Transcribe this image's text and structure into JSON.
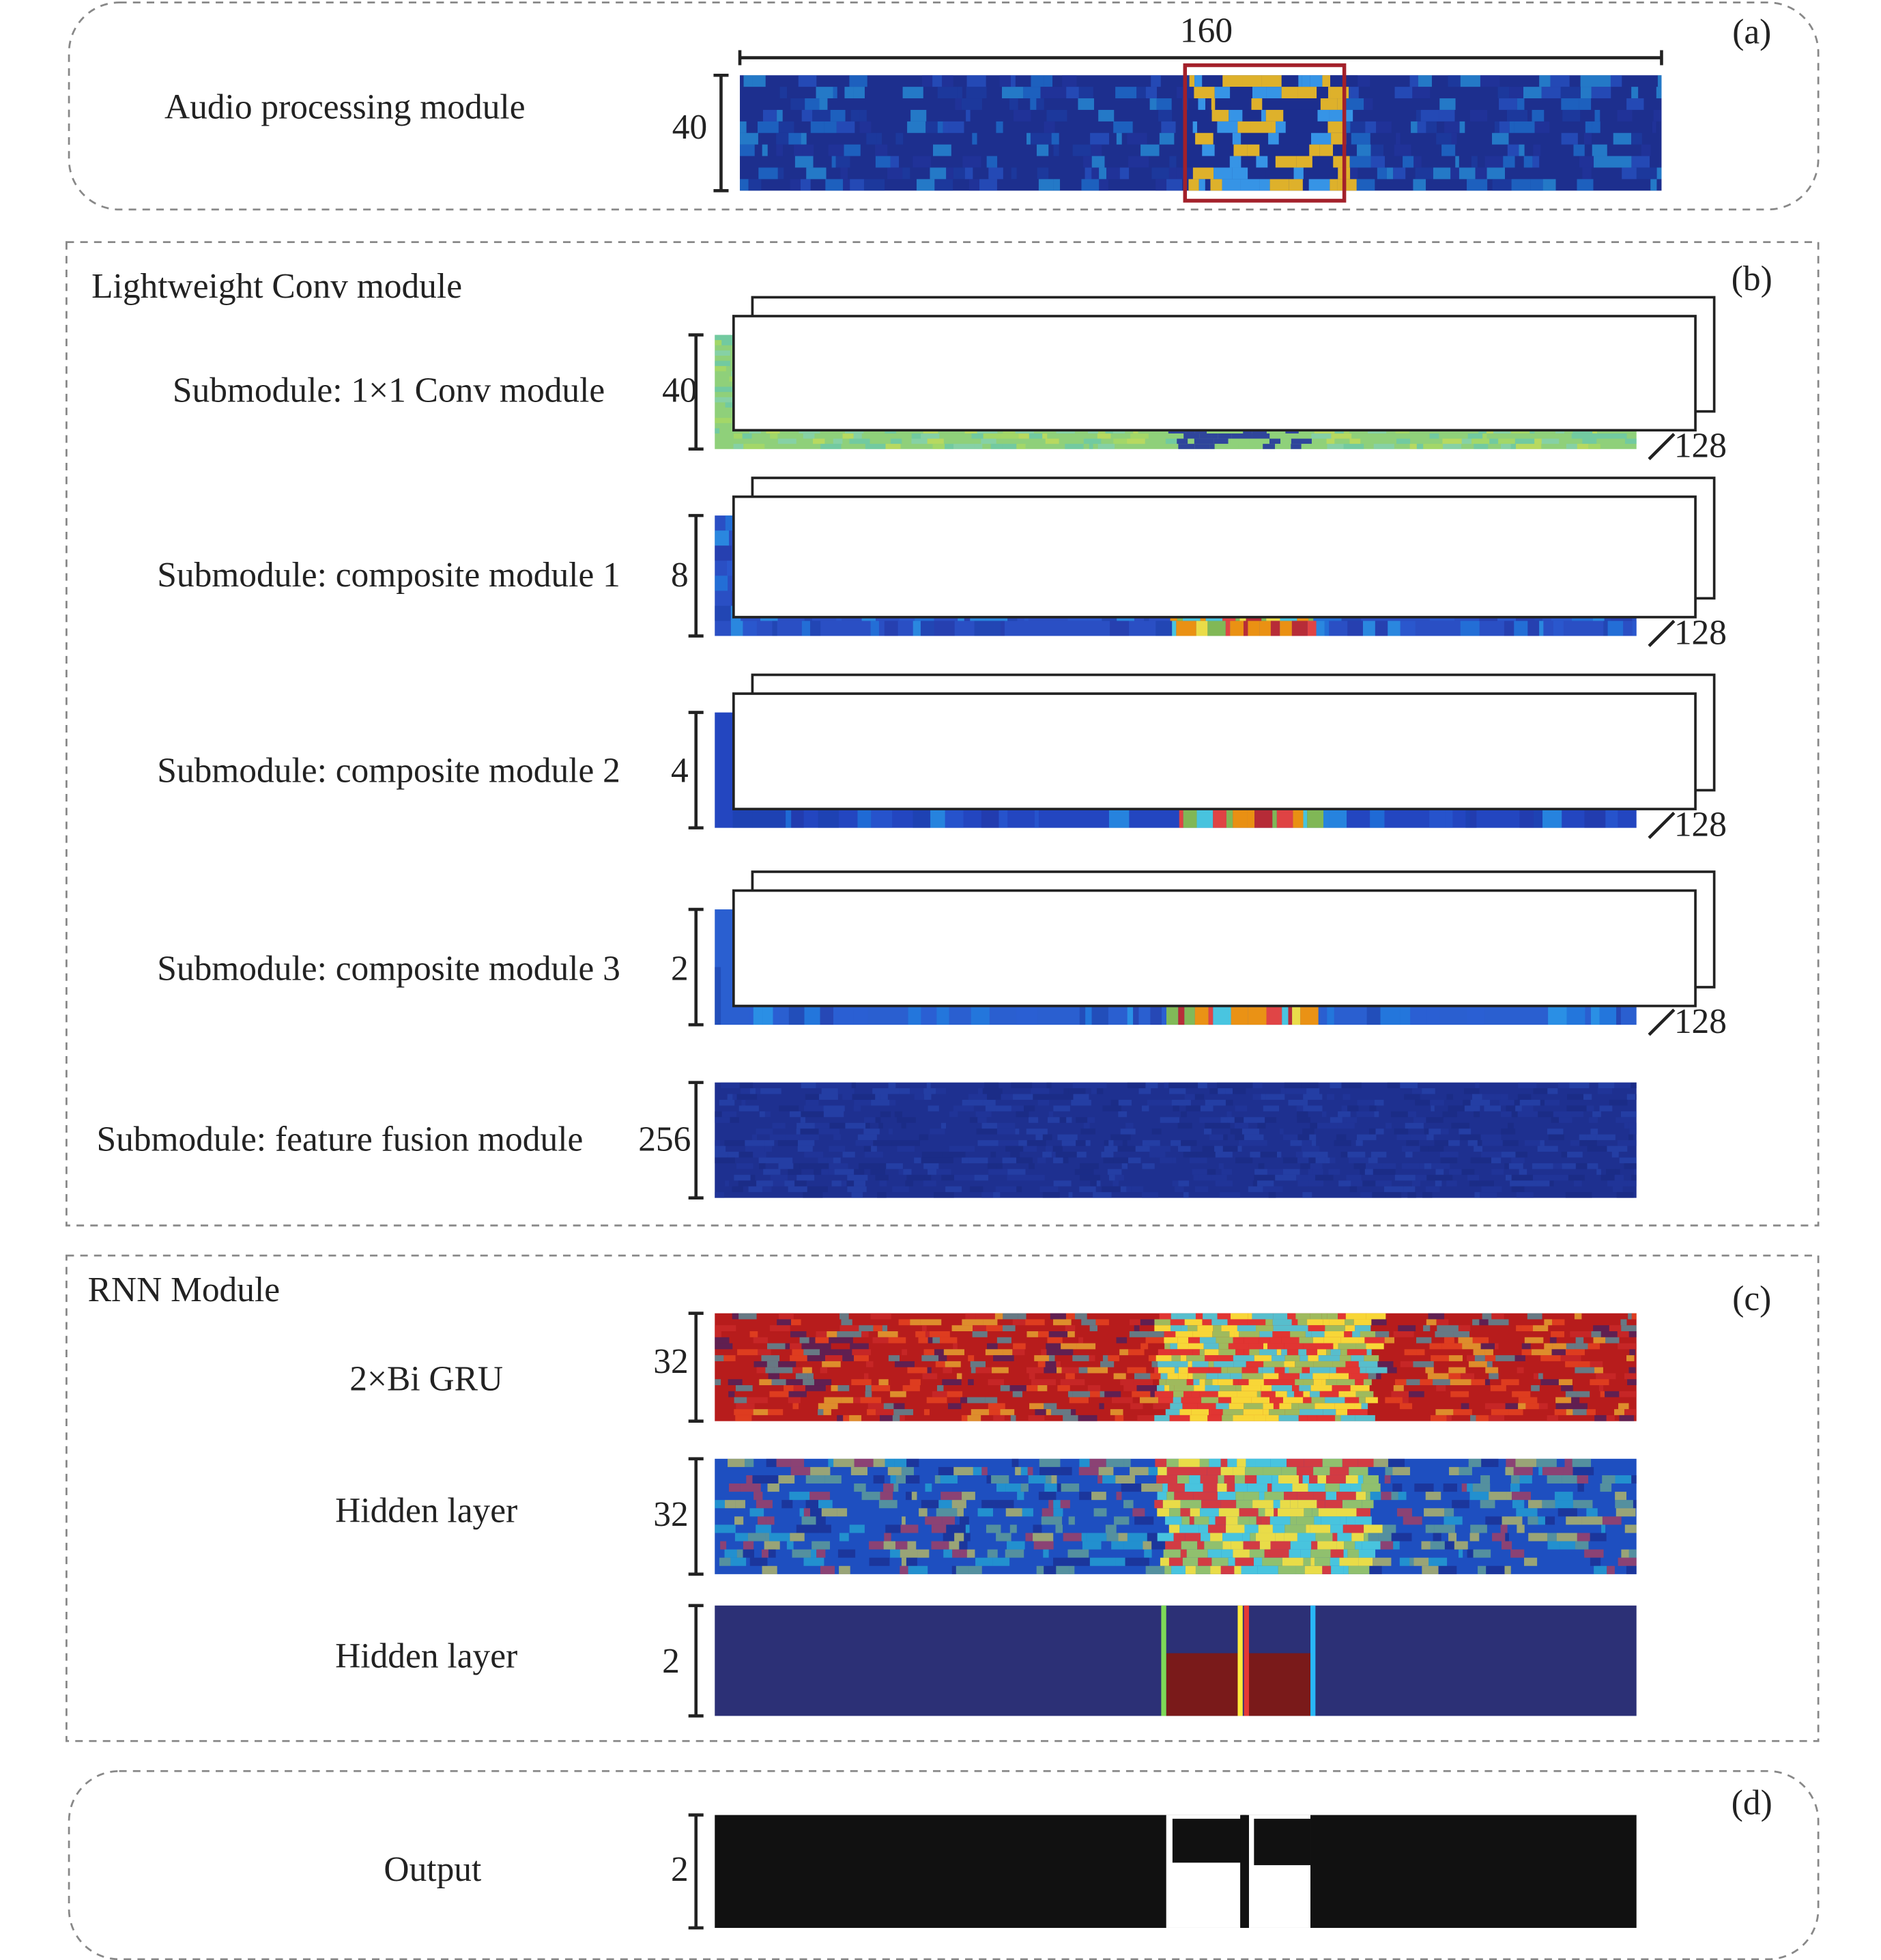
{
  "panels": {
    "a": {
      "tag": "(a)",
      "title": "Audio processing module",
      "width": "160",
      "height": "40"
    },
    "b": {
      "tag": "(b)",
      "title": "Lightweight Conv module",
      "rows": [
        {
          "label": "Submodule: 1×1 Conv module",
          "height": "40",
          "channels": "128"
        },
        {
          "label": "Submodule: composite module 1",
          "height": "8",
          "channels": "128"
        },
        {
          "label": "Submodule: composite module 2",
          "height": "4",
          "channels": "128"
        },
        {
          "label": "Submodule: composite module 3",
          "height": "2",
          "channels": "128"
        },
        {
          "label": "Submodule: feature fusion module",
          "height": "256"
        }
      ]
    },
    "c": {
      "tag": "(c)",
      "title": "RNN Module",
      "rows": [
        {
          "label": "2×Bi GRU",
          "height": "32"
        },
        {
          "label": "Hidden layer",
          "height": "32"
        },
        {
          "label": "Hidden layer",
          "height": "2"
        }
      ]
    },
    "d": {
      "tag": "(d)",
      "title": "Output",
      "height": "2"
    }
  }
}
